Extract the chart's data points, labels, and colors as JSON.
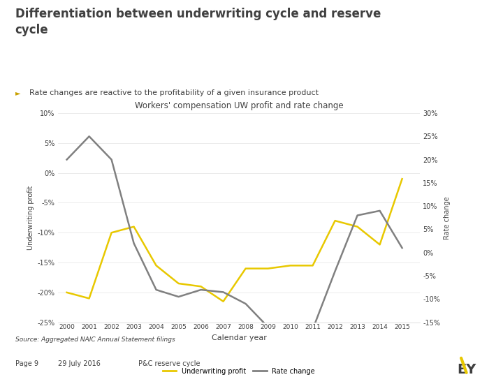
{
  "title": "Differentiation between underwriting cycle and reserve\ncycle",
  "subtitle": "Rate changes are reactive to the profitability of a given insurance product",
  "chart_title": "Workers' compensation UW profit and rate change",
  "xlabel": "Calendar year",
  "ylabel_left": "Underwriting profit",
  "ylabel_right": "Rate change",
  "source": "Source: Aggregated NAIC Annual Statement filings",
  "footer_left": "Page 9",
  "footer_date": "29 July 2016",
  "footer_title": "P&C reserve cycle",
  "years": [
    2000,
    2001,
    2002,
    2003,
    2004,
    2005,
    2006,
    2007,
    2008,
    2009,
    2010,
    2011,
    2012,
    2013,
    2014,
    2015
  ],
  "uw_profit": [
    -0.2,
    -0.21,
    -0.1,
    -0.09,
    -0.155,
    -0.185,
    -0.19,
    -0.215,
    -0.16,
    -0.16,
    -0.155,
    -0.155,
    -0.08,
    -0.09,
    -0.12,
    -0.01
  ],
  "rate_change": [
    0.2,
    0.25,
    0.2,
    0.02,
    -0.08,
    -0.095,
    -0.08,
    -0.085,
    -0.11,
    -0.16,
    -0.155,
    -0.165,
    -0.04,
    0.08,
    0.09,
    0.01
  ],
  "uw_color": "#e8c800",
  "rate_color": "#808080",
  "bg_color": "#ffffff",
  "chart_bg": "#ffffff",
  "title_color": "#404040",
  "ylim_left": [
    -0.25,
    0.1
  ],
  "ylim_right": [
    -0.15,
    0.3
  ],
  "yticks_left": [
    -0.25,
    -0.2,
    -0.15,
    -0.1,
    -0.05,
    0.0,
    0.05,
    0.1
  ],
  "yticks_right": [
    -0.15,
    -0.1,
    -0.05,
    0.0,
    0.05,
    0.1,
    0.15,
    0.2,
    0.25,
    0.3
  ],
  "separator_color": "#e8c800",
  "bullet_color": "#c8a000",
  "grid_color": "#e8e8e8",
  "border_color": "#d0d0d0"
}
